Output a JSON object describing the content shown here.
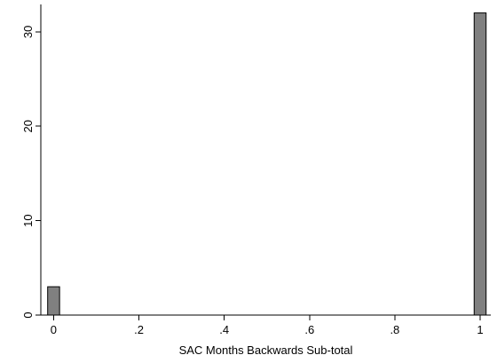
{
  "chart_data": {
    "type": "bar",
    "title": "",
    "xlabel": "SAC Months Backwards Sub-total",
    "ylabel": "",
    "xlim": [
      -0.03,
      1.025
    ],
    "ylim": [
      0,
      32.9
    ],
    "x_ticks": [
      0,
      0.2,
      0.4,
      0.6,
      0.8,
      1
    ],
    "x_tick_labels": [
      "0",
      ".2",
      ".4",
      ".6",
      ".8",
      "1"
    ],
    "y_ticks": [
      0,
      10,
      20,
      30
    ],
    "y_tick_labels": [
      "0",
      "10",
      "20",
      "30"
    ],
    "bar_width": 0.028,
    "bars": [
      {
        "x": 0,
        "value": 3
      },
      {
        "x": 1,
        "value": 32
      }
    ],
    "grid": false,
    "colors": {
      "bar_fill": "#808080",
      "bar_stroke": "#000000"
    }
  }
}
